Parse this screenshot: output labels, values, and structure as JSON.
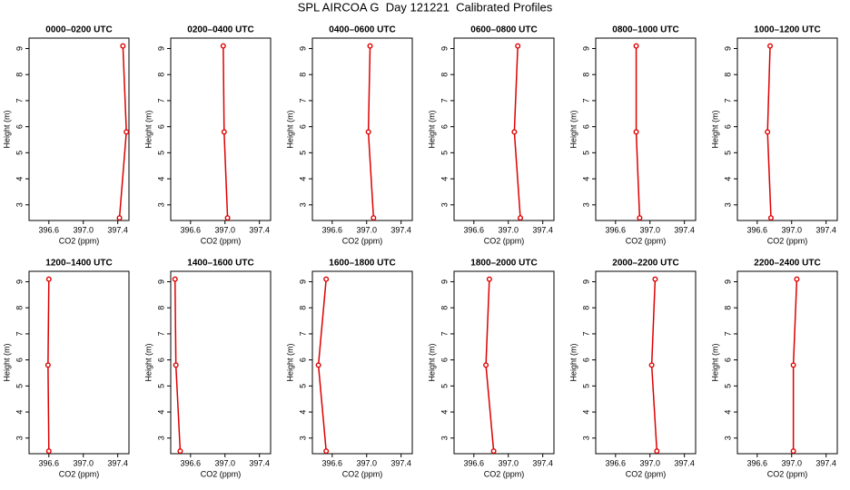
{
  "title": "SPL AIRCOA G  Day 121221  Calibrated Profiles",
  "chart_data": [
    {
      "type": "line",
      "title": "0000–0200 UTC",
      "x_label": "CO2 (ppm)",
      "y_label": "Height (m)",
      "color": "#dd0000",
      "x": [
        397.42,
        397.5,
        397.46
      ],
      "values": [
        2.5,
        5.8,
        9.1
      ],
      "xlim": [
        396.37,
        397.53
      ],
      "ylim": [
        2.4,
        9.4
      ],
      "xticks": [
        396.6,
        {
          "value": 397,
          "label": "397.0"
        },
        397.4
      ],
      "yticks": [
        3,
        4,
        5,
        6,
        7,
        8,
        9
      ]
    },
    {
      "type": "line",
      "title": "0200–0400 UTC",
      "x_label": "CO2 (ppm)",
      "y_label": "Height (m)",
      "color": "#dd0000",
      "x": [
        397.03,
        396.99,
        396.98
      ],
      "values": [
        2.5,
        5.8,
        9.1
      ],
      "xlim": [
        396.37,
        397.53
      ],
      "ylim": [
        2.4,
        9.4
      ],
      "xticks": [
        396.6,
        {
          "value": 397,
          "label": "397.0"
        },
        397.4
      ],
      "yticks": [
        3,
        4,
        5,
        6,
        7,
        8,
        9
      ]
    },
    {
      "type": "line",
      "title": "0400–0600 UTC",
      "x_label": "CO2 (ppm)",
      "y_label": "Height (m)",
      "color": "#dd0000",
      "x": [
        397.08,
        397.02,
        397.04
      ],
      "values": [
        2.5,
        5.8,
        9.1
      ],
      "xlim": [
        396.37,
        397.53
      ],
      "ylim": [
        2.4,
        9.4
      ],
      "xticks": [
        396.6,
        {
          "value": 397,
          "label": "397.0"
        },
        397.4
      ],
      "yticks": [
        3,
        4,
        5,
        6,
        7,
        8,
        9
      ]
    },
    {
      "type": "line",
      "title": "0600–0800 UTC",
      "x_label": "CO2 (ppm)",
      "y_label": "Height (m)",
      "color": "#dd0000",
      "x": [
        397.14,
        397.07,
        397.11
      ],
      "values": [
        2.5,
        5.8,
        9.1
      ],
      "xlim": [
        396.37,
        397.53
      ],
      "ylim": [
        2.4,
        9.4
      ],
      "xticks": [
        396.6,
        {
          "value": 397,
          "label": "397.0"
        },
        397.4
      ],
      "yticks": [
        3,
        4,
        5,
        6,
        7,
        8,
        9
      ]
    },
    {
      "type": "line",
      "title": "0800–1000 UTC",
      "x_label": "CO2 (ppm)",
      "y_label": "Height (m)",
      "color": "#dd0000",
      "x": [
        396.88,
        396.84,
        396.84
      ],
      "values": [
        2.5,
        5.8,
        9.1
      ],
      "xlim": [
        396.37,
        397.53
      ],
      "ylim": [
        2.4,
        9.4
      ],
      "xticks": [
        396.6,
        {
          "value": 397,
          "label": "397.0"
        },
        397.4
      ],
      "yticks": [
        3,
        4,
        5,
        6,
        7,
        8,
        9
      ]
    },
    {
      "type": "line",
      "title": "1000–1200 UTC",
      "x_label": "CO2 (ppm)",
      "y_label": "Height (m)",
      "color": "#dd0000",
      "x": [
        396.76,
        396.72,
        396.75
      ],
      "values": [
        2.5,
        5.8,
        9.1
      ],
      "xlim": [
        396.37,
        397.53
      ],
      "ylim": [
        2.4,
        9.4
      ],
      "xticks": [
        396.6,
        {
          "value": 397,
          "label": "397.0"
        },
        397.4
      ],
      "yticks": [
        3,
        4,
        5,
        6,
        7,
        8,
        9
      ]
    },
    {
      "type": "line",
      "title": "1200–1400 UTC",
      "x_label": "CO2 (ppm)",
      "y_label": "Height (m)",
      "color": "#dd0000",
      "x": [
        396.6,
        396.59,
        396.6
      ],
      "values": [
        2.5,
        5.8,
        9.1
      ],
      "xlim": [
        396.37,
        397.53
      ],
      "ylim": [
        2.4,
        9.4
      ],
      "xticks": [
        396.6,
        {
          "value": 397,
          "label": "397.0"
        },
        397.4
      ],
      "yticks": [
        3,
        4,
        5,
        6,
        7,
        8,
        9
      ]
    },
    {
      "type": "line",
      "title": "1400–1600 UTC",
      "x_label": "CO2 (ppm)",
      "y_label": "Height (m)",
      "color": "#dd0000",
      "x": [
        396.48,
        396.43,
        396.42
      ],
      "values": [
        2.5,
        5.8,
        9.1
      ],
      "xlim": [
        396.37,
        397.53
      ],
      "ylim": [
        2.4,
        9.4
      ],
      "xticks": [
        396.6,
        {
          "value": 397,
          "label": "397.0"
        },
        397.4
      ],
      "yticks": [
        3,
        4,
        5,
        6,
        7,
        8,
        9
      ]
    },
    {
      "type": "line",
      "title": "1600–1800 UTC",
      "x_label": "CO2 (ppm)",
      "y_label": "Height (m)",
      "color": "#dd0000",
      "x": [
        396.53,
        396.44,
        396.53
      ],
      "values": [
        2.5,
        5.8,
        9.1
      ],
      "xlim": [
        396.37,
        397.53
      ],
      "ylim": [
        2.4,
        9.4
      ],
      "xticks": [
        396.6,
        {
          "value": 397,
          "label": "397.0"
        },
        397.4
      ],
      "yticks": [
        3,
        4,
        5,
        6,
        7,
        8,
        9
      ]
    },
    {
      "type": "line",
      "title": "1800–2000 UTC",
      "x_label": "CO2 (ppm)",
      "y_label": "Height (m)",
      "color": "#dd0000",
      "x": [
        396.83,
        396.74,
        396.78
      ],
      "values": [
        2.5,
        5.8,
        9.1
      ],
      "xlim": [
        396.37,
        397.53
      ],
      "ylim": [
        2.4,
        9.4
      ],
      "xticks": [
        396.6,
        {
          "value": 397,
          "label": "397.0"
        },
        397.4
      ],
      "yticks": [
        3,
        4,
        5,
        6,
        7,
        8,
        9
      ]
    },
    {
      "type": "line",
      "title": "2000–2200 UTC",
      "x_label": "CO2 (ppm)",
      "y_label": "Height (m)",
      "color": "#dd0000",
      "x": [
        397.08,
        397.02,
        397.06
      ],
      "values": [
        2.5,
        5.8,
        9.1
      ],
      "xlim": [
        396.37,
        397.53
      ],
      "ylim": [
        2.4,
        9.4
      ],
      "xticks": [
        396.6,
        {
          "value": 397,
          "label": "397.0"
        },
        397.4
      ],
      "yticks": [
        3,
        4,
        5,
        6,
        7,
        8,
        9
      ]
    },
    {
      "type": "line",
      "title": "2200–2400 UTC",
      "x_label": "CO2 (ppm)",
      "y_label": "Height (m)",
      "color": "#dd0000",
      "x": [
        397.02,
        397.02,
        397.06
      ],
      "values": [
        2.5,
        5.8,
        9.1
      ],
      "xlim": [
        396.37,
        397.53
      ],
      "ylim": [
        2.4,
        9.4
      ],
      "xticks": [
        396.6,
        {
          "value": 397,
          "label": "397.0"
        },
        397.4
      ],
      "yticks": [
        3,
        4,
        5,
        6,
        7,
        8,
        9
      ]
    }
  ]
}
